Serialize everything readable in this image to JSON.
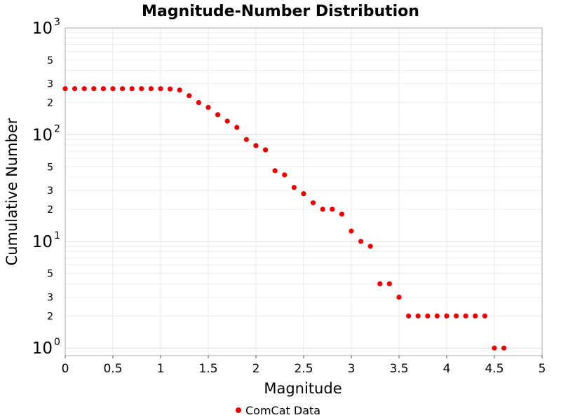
{
  "chart_data": {
    "type": "scatter",
    "title": "Magnitude-Number Distribution",
    "xlabel": "Magnitude",
    "ylabel": "Cumulative Number",
    "xlim": [
      0,
      5
    ],
    "ylim": [
      0.85,
      1000
    ],
    "y_scale": "log",
    "grid": true,
    "legend_position": "bottom-center",
    "x_ticks": [
      "0",
      "0.5",
      "1",
      "1.5",
      "2",
      "2.5",
      "3",
      "3.5",
      "4",
      "4.5",
      "5"
    ],
    "y_major_ticks": [
      {
        "value": 1,
        "base": "10",
        "exp": "0"
      },
      {
        "value": 10,
        "base": "10",
        "exp": "1"
      },
      {
        "value": 100,
        "base": "10",
        "exp": "2"
      },
      {
        "value": 1000,
        "base": "10",
        "exp": "3"
      }
    ],
    "y_minor_labels": [
      {
        "value": 2,
        "label": "2"
      },
      {
        "value": 3,
        "label": "3"
      },
      {
        "value": 5,
        "label": "5"
      },
      {
        "value": 20,
        "label": "2"
      },
      {
        "value": 30,
        "label": "3"
      },
      {
        "value": 50,
        "label": "5"
      },
      {
        "value": 200,
        "label": "2"
      },
      {
        "value": 300,
        "label": "3"
      },
      {
        "value": 500,
        "label": "5"
      }
    ],
    "series": [
      {
        "name": "ComCat Data",
        "color": "#ee0000",
        "marker": "circle",
        "points": [
          [
            0.0,
            270
          ],
          [
            0.1,
            270
          ],
          [
            0.2,
            270
          ],
          [
            0.3,
            270
          ],
          [
            0.4,
            270
          ],
          [
            0.5,
            270
          ],
          [
            0.6,
            270
          ],
          [
            0.7,
            270
          ],
          [
            0.8,
            270
          ],
          [
            0.9,
            270
          ],
          [
            1.0,
            270
          ],
          [
            1.1,
            268
          ],
          [
            1.2,
            262
          ],
          [
            1.3,
            232
          ],
          [
            1.4,
            200
          ],
          [
            1.5,
            180
          ],
          [
            1.6,
            154
          ],
          [
            1.7,
            134
          ],
          [
            1.8,
            117
          ],
          [
            1.9,
            90
          ],
          [
            2.0,
            79
          ],
          [
            2.1,
            72
          ],
          [
            2.2,
            46
          ],
          [
            2.3,
            42
          ],
          [
            2.4,
            32
          ],
          [
            2.5,
            28
          ],
          [
            2.6,
            23
          ],
          [
            2.7,
            20
          ],
          [
            2.8,
            20
          ],
          [
            2.9,
            18
          ],
          [
            3.0,
            12.5
          ],
          [
            3.1,
            10
          ],
          [
            3.2,
            9
          ],
          [
            3.3,
            4
          ],
          [
            3.4,
            4
          ],
          [
            3.5,
            3
          ],
          [
            3.6,
            2
          ],
          [
            3.7,
            2
          ],
          [
            3.8,
            2
          ],
          [
            3.9,
            2
          ],
          [
            4.0,
            2
          ],
          [
            4.1,
            2
          ],
          [
            4.2,
            2
          ],
          [
            4.3,
            2
          ],
          [
            4.4,
            2
          ],
          [
            4.5,
            1
          ],
          [
            4.6,
            1
          ]
        ]
      }
    ]
  }
}
